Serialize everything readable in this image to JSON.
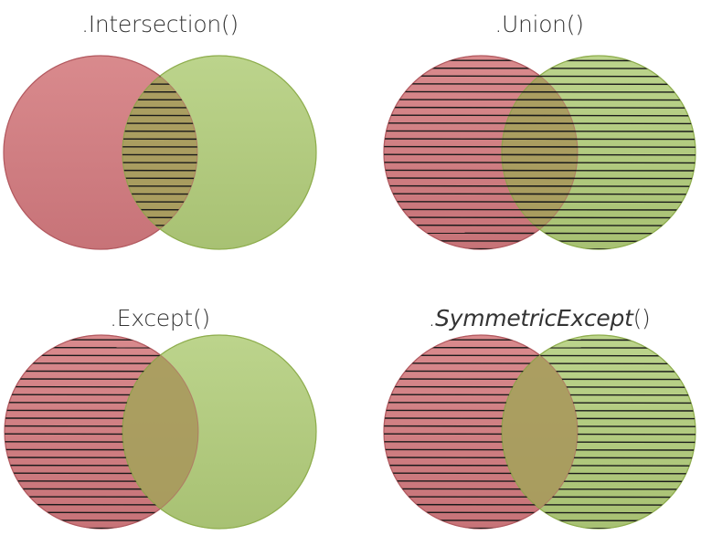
{
  "diagrams": [
    {
      "title_prefix": ".",
      "title_main": "Intersection",
      "title_suffix": "()",
      "italic": false,
      "hatch": "intersection"
    },
    {
      "title_prefix": ".",
      "title_main": "Union",
      "title_suffix": "()",
      "italic": false,
      "hatch": "union"
    },
    {
      "title_prefix": ".",
      "title_main": "Except",
      "title_suffix": "()",
      "italic": false,
      "hatch": "except"
    },
    {
      "title_prefix": ".",
      "title_main": "SymmetricExcept",
      "title_suffix": "()",
      "italic": true,
      "hatch": "symmetric"
    }
  ],
  "colors": {
    "set_a": "#d17b7f",
    "set_a_dark": "#b35a60",
    "set_b": "#b3cc80",
    "set_b_dark": "#8fae4e",
    "overlap": "#a8955a",
    "hatch_line": "#1a1a1a"
  }
}
